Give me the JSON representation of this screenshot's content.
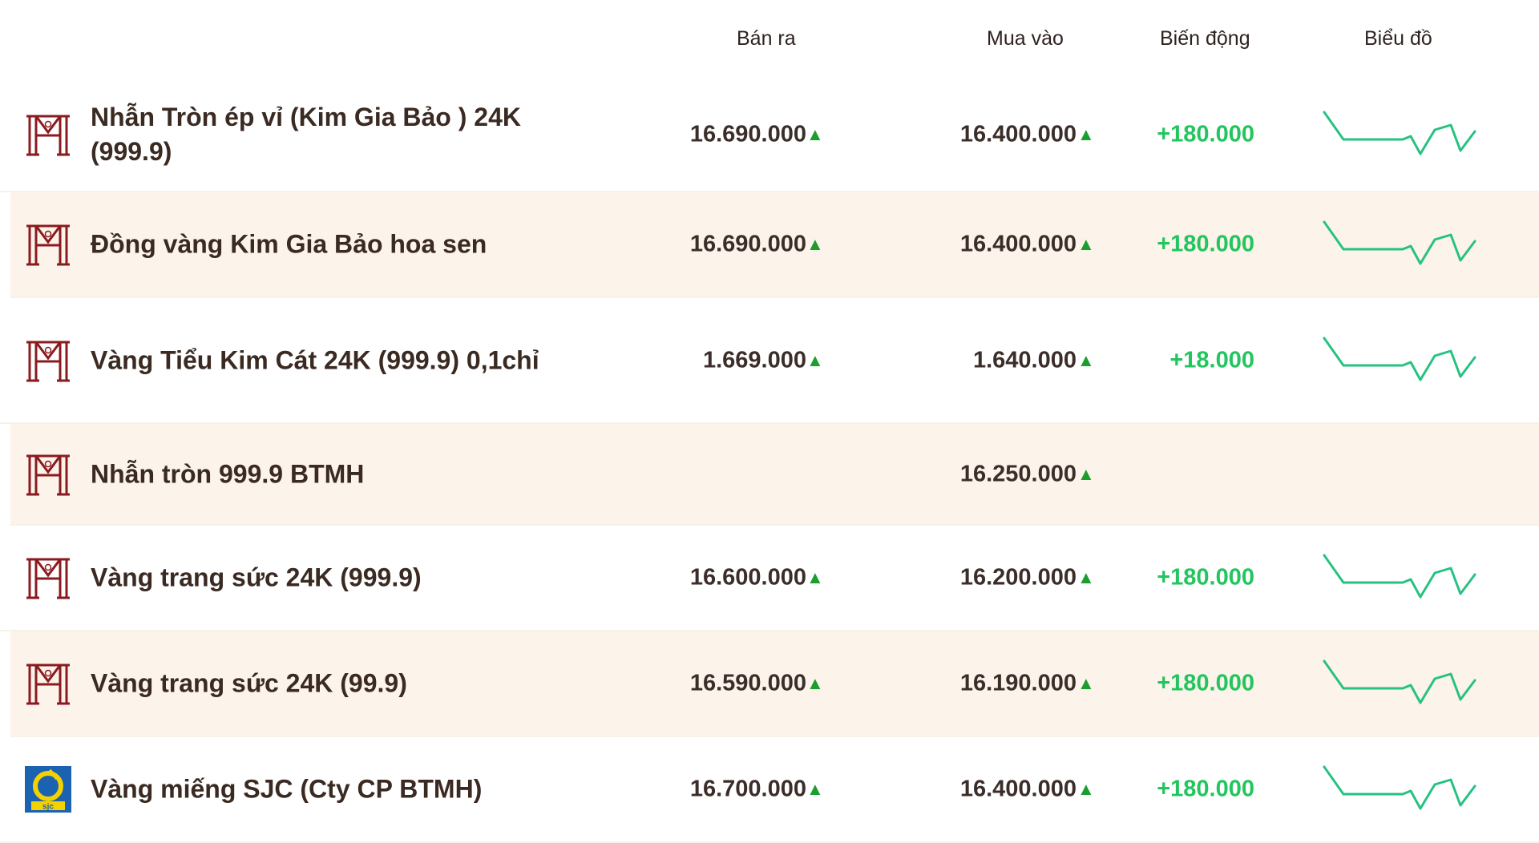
{
  "header": {
    "sell": "Bán ra",
    "buy": "Mua vào",
    "change": "Biến động",
    "chart": "Biểu đồ"
  },
  "colors": {
    "logo_maroon": "#8b1a1f",
    "up_arrow": "#1b9e2e",
    "change_green": "#22c55e",
    "spark_green": "#26c281",
    "alt_row_bg": "#fcf3ea",
    "sjc_blue": "#1b63b0",
    "sjc_yellow": "#f4d100"
  },
  "rows": [
    {
      "logo": "btmh-logo",
      "name": "Nhẫn Tròn ép vỉ (Kim Gia Bảo ) 24K (999.9)",
      "sell": "16.690.000",
      "buy": "16.400.000",
      "change": "+180.000",
      "sell_arrow": "▲",
      "buy_arrow": "▲",
      "chart": true,
      "alt": false
    },
    {
      "logo": "btmh-logo",
      "name": "Đồng vàng Kim Gia Bảo hoa sen",
      "sell": "16.690.000",
      "buy": "16.400.000",
      "change": "+180.000",
      "sell_arrow": "▲",
      "buy_arrow": "▲",
      "chart": true,
      "alt": true
    },
    {
      "logo": "btmh-logo",
      "name": "Vàng Tiểu Kim Cát 24K (999.9) 0,1chỉ",
      "sell": "1.669.000",
      "buy": "1.640.000",
      "change": "+18.000",
      "sell_arrow": "▲",
      "buy_arrow": "▲",
      "chart": true,
      "alt": false
    },
    {
      "logo": "btmh-logo",
      "name": "Nhẫn tròn 999.9 BTMH",
      "sell": "",
      "buy": "16.250.000",
      "change": "",
      "sell_arrow": "",
      "buy_arrow": "▲",
      "chart": false,
      "alt": true
    },
    {
      "logo": "btmh-logo",
      "name": "Vàng trang sức 24K (999.9)",
      "sell": "16.600.000",
      "buy": "16.200.000",
      "change": "+180.000",
      "sell_arrow": "▲",
      "buy_arrow": "▲",
      "chart": true,
      "alt": false
    },
    {
      "logo": "btmh-logo",
      "name": "Vàng trang sức 24K (99.9)",
      "sell": "16.590.000",
      "buy": "16.190.000",
      "change": "+180.000",
      "sell_arrow": "▲",
      "buy_arrow": "▲",
      "chart": true,
      "alt": true
    },
    {
      "logo": "sjc-logo",
      "name": "Vàng miếng SJC (Cty CP BTMH)",
      "sell": "16.700.000",
      "buy": "16.400.000",
      "change": "+180.000",
      "sell_arrow": "▲",
      "buy_arrow": "▲",
      "chart": true,
      "alt": false
    }
  ],
  "sjc_logo_text": "sjc"
}
